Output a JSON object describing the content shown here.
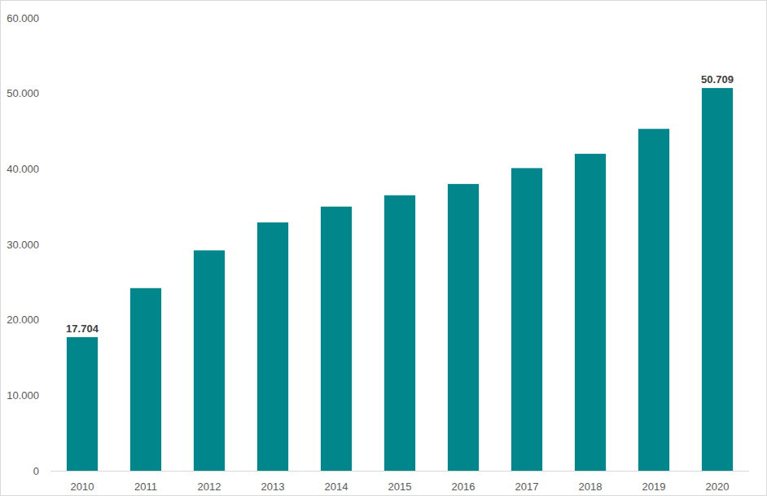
{
  "chart_data": {
    "type": "bar",
    "categories": [
      "2010",
      "2011",
      "2012",
      "2013",
      "2014",
      "2015",
      "2016",
      "2017",
      "2018",
      "2019",
      "2020"
    ],
    "values": [
      17704,
      24200,
      29200,
      32900,
      35000,
      36500,
      38000,
      40100,
      42000,
      45300,
      50709
    ],
    "value_labels": [
      "17.704",
      null,
      null,
      null,
      null,
      null,
      null,
      null,
      null,
      null,
      "50.709"
    ],
    "data_labels": true,
    "color": "#00868b",
    "ylim": [
      0,
      60000
    ],
    "yticks": [
      0,
      {
        "value": 10000,
        "label": "10.000"
      },
      {
        "value": 20000,
        "label": "20.000"
      },
      {
        "value": 30000,
        "label": "30.000"
      },
      {
        "value": 40000,
        "label": "40.000"
      },
      {
        "value": 50000,
        "label": "50.000"
      },
      {
        "value": 60000,
        "label": "60.000"
      }
    ],
    "grid": false
  }
}
